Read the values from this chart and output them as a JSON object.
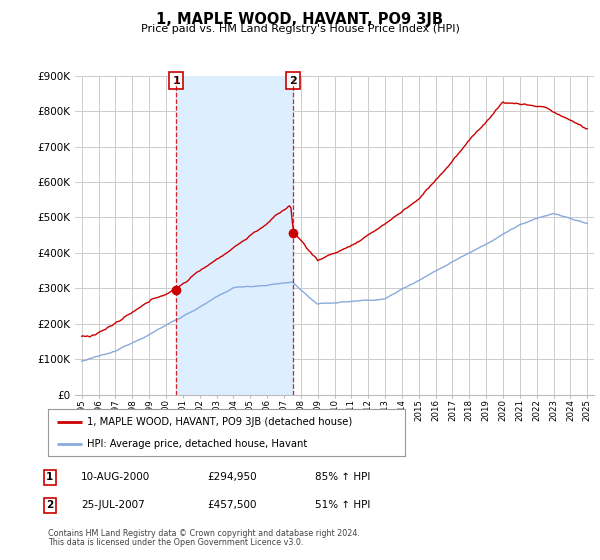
{
  "title": "1, MAPLE WOOD, HAVANT, PO9 3JB",
  "subtitle": "Price paid vs. HM Land Registry's House Price Index (HPI)",
  "background_color": "#ffffff",
  "plot_bg_color": "#ffffff",
  "grid_color": "#cccccc",
  "red_line_color": "#cc0000",
  "blue_line_color": "#88aadd",
  "shade_color": "#ddeeff",
  "ylim": [
    0,
    900000
  ],
  "yticks": [
    0,
    100000,
    200000,
    300000,
    400000,
    500000,
    600000,
    700000,
    800000,
    900000
  ],
  "ytick_labels": [
    "£0",
    "£100K",
    "£200K",
    "£300K",
    "£400K",
    "£500K",
    "£600K",
    "£700K",
    "£800K",
    "£900K"
  ],
  "purchase1": {
    "date_num": 2000.61,
    "price": 294950,
    "label": "1",
    "display_date": "10-AUG-2000",
    "display_price": "£294,950",
    "display_hpi": "85% ↑ HPI"
  },
  "purchase2": {
    "date_num": 2007.56,
    "price": 457500,
    "label": "2",
    "display_date": "25-JUL-2007",
    "display_price": "£457,500",
    "display_hpi": "51% ↑ HPI"
  },
  "legend_line1": "1, MAPLE WOOD, HAVANT, PO9 3JB (detached house)",
  "legend_line2": "HPI: Average price, detached house, Havant",
  "footer1": "Contains HM Land Registry data © Crown copyright and database right 2024.",
  "footer2": "This data is licensed under the Open Government Licence v3.0.",
  "table_rows": [
    {
      "num": "1",
      "date": "10-AUG-2000",
      "price": "£294,950",
      "hpi": "85% ↑ HPI"
    },
    {
      "num": "2",
      "date": "25-JUL-2007",
      "price": "£457,500",
      "hpi": "51% ↑ HPI"
    }
  ]
}
